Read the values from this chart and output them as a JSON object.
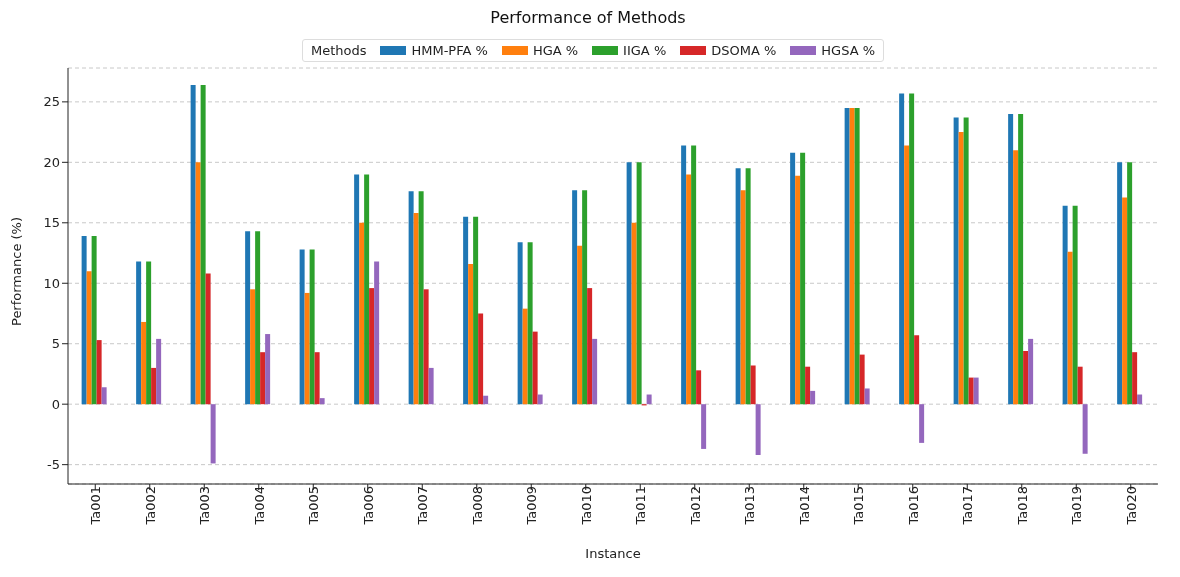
{
  "chart_data": {
    "type": "bar",
    "title": "Performance of Methods",
    "xlabel": "Instance",
    "ylabel": "Performance (%)",
    "legend_title": "Methods",
    "legend": "top",
    "grid": "y",
    "ylim": [
      -6.6,
      27.8
    ],
    "yticks": [
      -5,
      0,
      5,
      10,
      15,
      20,
      25
    ],
    "categories": [
      "Ta001",
      "Ta002",
      "Ta003",
      "Ta004",
      "Ta005",
      "Ta006",
      "Ta007",
      "Ta008",
      "Ta009",
      "Ta010",
      "Ta011",
      "Ta012",
      "Ta013",
      "Ta014",
      "Ta015",
      "Ta016",
      "Ta017",
      "Ta018",
      "Ta019",
      "Ta020"
    ],
    "series": [
      {
        "name": "HMM-PFA %",
        "color": "#1f77b4",
        "values": [
          13.9,
          11.8,
          26.4,
          14.3,
          12.8,
          19.0,
          17.6,
          15.5,
          13.4,
          17.7,
          20.0,
          21.4,
          19.5,
          20.8,
          24.5,
          25.7,
          23.7,
          24.0,
          16.4,
          20.0
        ]
      },
      {
        "name": "HGA %",
        "color": "#ff7f0e",
        "values": [
          11.0,
          6.8,
          20.0,
          9.5,
          9.2,
          15.0,
          15.8,
          11.6,
          7.9,
          13.1,
          15.0,
          19.0,
          17.7,
          18.9,
          24.5,
          21.4,
          22.5,
          21.0,
          12.6,
          17.1
        ]
      },
      {
        "name": "IIGA %",
        "color": "#2ca02c",
        "values": [
          13.9,
          11.8,
          26.4,
          14.3,
          12.8,
          19.0,
          17.6,
          15.5,
          13.4,
          17.7,
          20.0,
          21.4,
          19.5,
          20.8,
          24.5,
          25.7,
          23.7,
          24.0,
          16.4,
          20.0
        ]
      },
      {
        "name": "DSOMA %",
        "color": "#d62728",
        "values": [
          5.3,
          3.0,
          10.8,
          4.3,
          4.3,
          9.6,
          9.5,
          7.5,
          6.0,
          9.6,
          -0.1,
          2.8,
          3.2,
          3.1,
          4.1,
          5.7,
          2.2,
          4.4,
          3.1,
          4.3
        ]
      },
      {
        "name": "HGSA %",
        "color": "#9467bd",
        "values": [
          1.4,
          5.4,
          -4.9,
          5.8,
          0.5,
          11.8,
          3.0,
          0.7,
          0.8,
          5.4,
          0.8,
          -3.7,
          -4.2,
          1.1,
          1.3,
          -3.2,
          2.2,
          5.4,
          -4.1,
          0.8
        ]
      }
    ]
  }
}
